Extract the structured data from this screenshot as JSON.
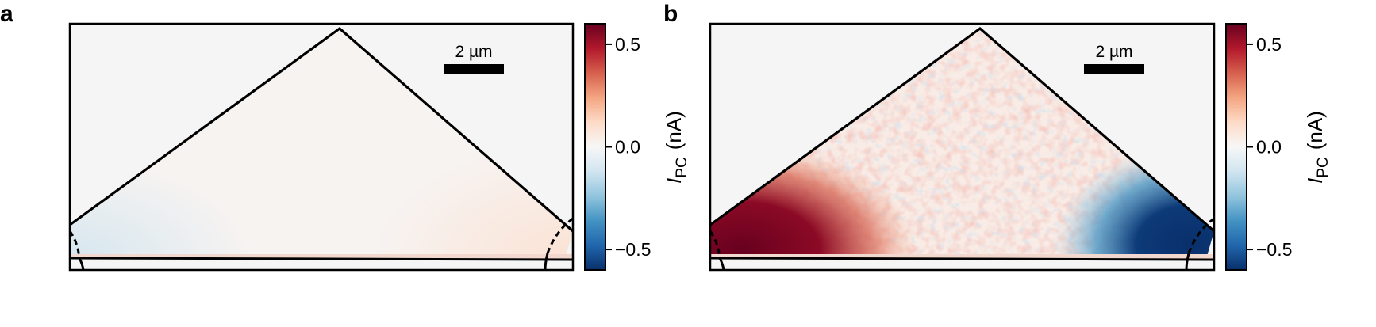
{
  "chart_data": [
    {
      "type": "heatmap",
      "panel_label": "a",
      "scale_bar_label": "2 µm",
      "colorbar": {
        "label_symbol": "I",
        "label_subscript": "PC",
        "label_unit": "(nA)",
        "range": [
          -0.6,
          0.6
        ],
        "ticks": [
          0.5,
          0.0,
          -0.5
        ],
        "tick_labels": [
          "0.5",
          "0.0",
          "−0.5"
        ],
        "colors": [
          "#08306b",
          "#2166ac",
          "#4393c3",
          "#92c5de",
          "#d1e5f0",
          "#f7f7f7",
          "#fddbc7",
          "#f4a582",
          "#d6604d",
          "#b2182b",
          "#67001f"
        ]
      },
      "photocurrent_regions": [
        {
          "location": "left corner",
          "value_nA": -0.05
        },
        {
          "location": "interior",
          "value_nA": 0.01
        },
        {
          "location": "right corner",
          "value_nA": 0.02
        }
      ]
    },
    {
      "type": "heatmap",
      "panel_label": "b",
      "scale_bar_label": "2 µm",
      "colorbar": {
        "label_symbol": "I",
        "label_subscript": "PC",
        "label_unit": "(nA)",
        "range": [
          -0.6,
          0.6
        ],
        "ticks": [
          0.5,
          0.0,
          -0.5
        ],
        "tick_labels": [
          "0.5",
          "0.0",
          "−0.5"
        ],
        "colors": [
          "#08306b",
          "#2166ac",
          "#4393c3",
          "#92c5de",
          "#d1e5f0",
          "#f7f7f7",
          "#fddbc7",
          "#f4a582",
          "#d6604d",
          "#b2182b",
          "#67001f"
        ]
      },
      "photocurrent_regions": [
        {
          "location": "left corner",
          "value_nA": 0.6
        },
        {
          "location": "interior",
          "value_nA": 0.15
        },
        {
          "location": "right corner",
          "value_nA": -0.6
        }
      ]
    }
  ]
}
